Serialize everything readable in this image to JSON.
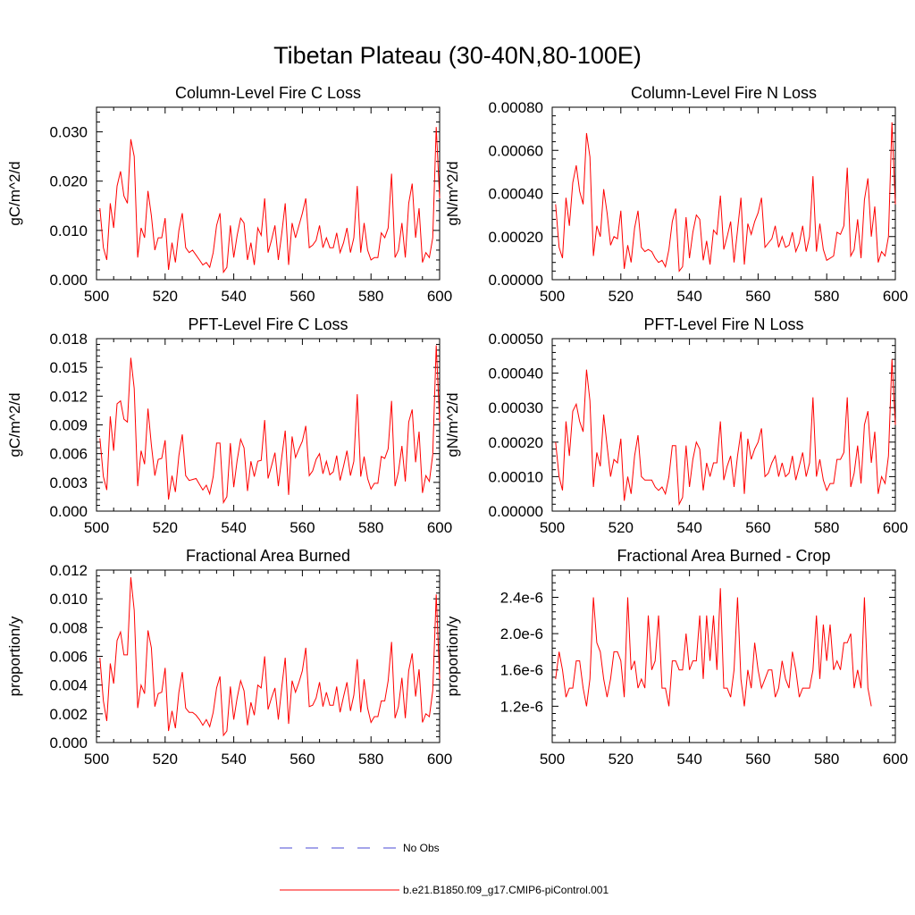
{
  "title": "Tibetan Plateau (30-40N,80-100E)",
  "colors": {
    "model": "#ff0000",
    "obs": "#4a4ad6",
    "axis": "#000000"
  },
  "legend": [
    {
      "label": "No Obs",
      "color": "#4a4ad6",
      "dash": "dashed"
    },
    {
      "label": "b.e21.B1850.f09_g17.CMIP6-piControl.001",
      "color": "#ff0000",
      "dash": "solid"
    }
  ],
  "chart_data": [
    {
      "type": "line",
      "title": "Column-Level Fire C Loss",
      "xlabel": "",
      "ylabel": "gC/m^2/d",
      "xlim": [
        500,
        600
      ],
      "ylim": [
        0,
        0.035
      ],
      "x_ticks": [
        "500",
        "520",
        "540",
        "560",
        "580",
        "600"
      ],
      "y_ticks": [
        "0.000",
        "0.010",
        "0.020",
        "0.030"
      ],
      "y_tick_values": [
        0,
        0.01,
        0.02,
        0.03
      ],
      "series": [
        {
          "name": "b.e21.B1850.f09_g17.CMIP6-piControl.001",
          "x_start": 501,
          "values": [
            0.0145,
            0.0065,
            0.004,
            0.0155,
            0.0105,
            0.019,
            0.022,
            0.017,
            0.0155,
            0.0285,
            0.025,
            0.0045,
            0.0105,
            0.0085,
            0.018,
            0.013,
            0.006,
            0.0085,
            0.0085,
            0.0125,
            0.002,
            0.0075,
            0.0035,
            0.01,
            0.0135,
            0.0065,
            0.0055,
            0.006,
            0.005,
            0.004,
            0.003,
            0.0035,
            0.0025,
            0.0055,
            0.011,
            0.0135,
            0.0015,
            0.0025,
            0.011,
            0.0045,
            0.009,
            0.0125,
            0.0115,
            0.004,
            0.0075,
            0.003,
            0.0105,
            0.009,
            0.0165,
            0.0055,
            0.008,
            0.011,
            0.004,
            0.0095,
            0.0155,
            0.003,
            0.0115,
            0.0085,
            0.011,
            0.0135,
            0.0165,
            0.0065,
            0.007,
            0.008,
            0.011,
            0.0065,
            0.0085,
            0.0065,
            0.0065,
            0.0095,
            0.0055,
            0.0075,
            0.0105,
            0.0055,
            0.0085,
            0.019,
            0.0055,
            0.0115,
            0.006,
            0.004,
            0.0045,
            0.0045,
            0.0095,
            0.0085,
            0.0105,
            0.0215,
            0.0045,
            0.006,
            0.0115,
            0.0045,
            0.0155,
            0.0195,
            0.0085,
            0.0145,
            0.0035,
            0.0055,
            0.0045,
            0.0085,
            0.031,
            0.0165
          ]
        }
      ]
    },
    {
      "type": "line",
      "title": "Column-Level Fire N Loss",
      "xlabel": "",
      "ylabel": "gN/m^2/d",
      "xlim": [
        500,
        600
      ],
      "ylim": [
        0,
        0.0008
      ],
      "x_ticks": [
        "500",
        "520",
        "540",
        "560",
        "580",
        "600"
      ],
      "y_ticks": [
        "0.00000",
        "0.00020",
        "0.00040",
        "0.00060",
        "0.00080"
      ],
      "y_tick_values": [
        0,
        0.0002,
        0.0004,
        0.0006,
        0.0008
      ],
      "series": [
        {
          "name": "b.e21.B1850.f09_g17.CMIP6-piControl.001",
          "x_start": 501,
          "values": [
            0.00035,
            0.00015,
            0.0001,
            0.00038,
            0.00025,
            0.00045,
            0.00053,
            0.00041,
            0.00035,
            0.00068,
            0.00057,
            0.00011,
            0.00025,
            0.0002,
            0.00042,
            0.00031,
            0.00016,
            0.0002,
            0.00019,
            0.00032,
            5e-05,
            0.00016,
            8e-05,
            0.00024,
            0.00032,
            0.00015,
            0.00013,
            0.00014,
            0.00013,
            0.0001,
            8e-05,
            9e-05,
            6e-05,
            0.00014,
            0.00027,
            0.00033,
            4e-05,
            6e-05,
            0.00029,
            0.0001,
            0.00022,
            0.0003,
            0.00028,
            9e-05,
            0.00018,
            7e-05,
            0.00023,
            0.00021,
            0.00039,
            0.00014,
            0.0002,
            0.00027,
            8e-05,
            0.00023,
            0.00038,
            7e-05,
            0.00026,
            0.00021,
            0.00027,
            0.00031,
            0.00038,
            0.00015,
            0.00017,
            0.00019,
            0.00025,
            0.00015,
            0.0002,
            0.00015,
            0.00016,
            0.00022,
            0.00013,
            0.00017,
            0.00025,
            0.00013,
            0.0002,
            0.00048,
            0.00013,
            0.00026,
            0.00014,
            9e-05,
            0.0001,
            0.00011,
            0.00022,
            0.00021,
            0.00025,
            0.00052,
            0.00011,
            0.00014,
            0.00028,
            0.0001,
            0.00037,
            0.00047,
            0.0002,
            0.00034,
            8e-05,
            0.00013,
            0.00011,
            0.0002,
            0.00073,
            0.00035
          ]
        }
      ]
    },
    {
      "type": "line",
      "title": "PFT-Level Fire C Loss",
      "xlabel": "",
      "ylabel": "gC/m^2/d",
      "xlim": [
        500,
        600
      ],
      "ylim": [
        0,
        0.018
      ],
      "x_ticks": [
        "500",
        "520",
        "540",
        "560",
        "580",
        "600"
      ],
      "y_ticks": [
        "0.000",
        "0.003",
        "0.006",
        "0.009",
        "0.012",
        "0.015",
        "0.018"
      ],
      "y_tick_values": [
        0,
        0.003,
        0.006,
        0.009,
        0.012,
        0.015,
        0.018
      ],
      "series": [
        {
          "name": "b.e21.B1850.f09_g17.CMIP6-piControl.001",
          "x_start": 501,
          "values": [
            0.0076,
            0.0036,
            0.0022,
            0.0099,
            0.0063,
            0.0112,
            0.0115,
            0.0096,
            0.0093,
            0.016,
            0.0128,
            0.0026,
            0.0063,
            0.0049,
            0.0107,
            0.0069,
            0.0037,
            0.0054,
            0.0055,
            0.0074,
            0.0012,
            0.0037,
            0.002,
            0.0058,
            0.008,
            0.0037,
            0.0032,
            0.0033,
            0.0034,
            0.0028,
            0.0022,
            0.0027,
            0.0018,
            0.0036,
            0.0071,
            0.0071,
            0.0009,
            0.0015,
            0.0071,
            0.0025,
            0.0053,
            0.0075,
            0.0066,
            0.0021,
            0.0052,
            0.0036,
            0.0052,
            0.0053,
            0.0095,
            0.0034,
            0.0047,
            0.0061,
            0.0026,
            0.0057,
            0.0084,
            0.0017,
            0.0078,
            0.0056,
            0.0065,
            0.0073,
            0.0089,
            0.0037,
            0.0042,
            0.0054,
            0.006,
            0.0039,
            0.0052,
            0.0038,
            0.0041,
            0.0058,
            0.0032,
            0.0047,
            0.0063,
            0.0037,
            0.0052,
            0.0122,
            0.0036,
            0.0057,
            0.0034,
            0.0023,
            0.0029,
            0.0029,
            0.0057,
            0.0055,
            0.0065,
            0.0115,
            0.0026,
            0.0041,
            0.0068,
            0.0031,
            0.0093,
            0.0106,
            0.0051,
            0.0083,
            0.0019,
            0.0037,
            0.0031,
            0.0059,
            0.0173,
            0.0093
          ]
        }
      ]
    },
    {
      "type": "line",
      "title": "PFT-Level Fire N Loss",
      "xlabel": "",
      "ylabel": "gN/m^2/d",
      "xlim": [
        500,
        600
      ],
      "ylim": [
        0,
        0.0005
      ],
      "x_ticks": [
        "500",
        "520",
        "540",
        "560",
        "580",
        "600"
      ],
      "y_ticks": [
        "0.00000",
        "0.00010",
        "0.00020",
        "0.00030",
        "0.00040",
        "0.00050"
      ],
      "y_tick_values": [
        0,
        0.0001,
        0.0002,
        0.0003,
        0.0004,
        0.0005
      ],
      "series": [
        {
          "name": "b.e21.B1850.f09_g17.CMIP6-piControl.001",
          "x_start": 501,
          "values": [
            0.0002,
            0.0001,
            6e-05,
            0.00026,
            0.00016,
            0.00029,
            0.00031,
            0.00026,
            0.00023,
            0.00041,
            0.00032,
            7e-05,
            0.00017,
            0.00013,
            0.00028,
            0.00019,
            0.0001,
            0.00015,
            0.00014,
            0.00021,
            3e-05,
            0.0001,
            5e-05,
            0.00016,
            0.00022,
            0.0001,
            9e-05,
            9e-05,
            9e-05,
            7e-05,
            6e-05,
            7e-05,
            5e-05,
            0.0001,
            0.00019,
            0.00019,
            2e-05,
            4e-05,
            0.00019,
            7e-05,
            0.00015,
            0.0002,
            0.00018,
            6e-05,
            0.00014,
            0.0001,
            0.00014,
            0.00014,
            0.00026,
            9e-05,
            0.00013,
            0.00016,
            7e-05,
            0.00016,
            0.00023,
            5e-05,
            0.00021,
            0.00015,
            0.00018,
            0.0002,
            0.00024,
            0.0001,
            0.00011,
            0.00014,
            0.00016,
            0.0001,
            0.00014,
            0.0001,
            0.00011,
            0.00016,
            9e-05,
            0.00013,
            0.00017,
            0.0001,
            0.00014,
            0.00033,
            0.0001,
            0.00015,
            9e-05,
            6e-05,
            8e-05,
            8e-05,
            0.00015,
            0.00015,
            0.00017,
            0.00033,
            7e-05,
            0.00011,
            0.00019,
            8e-05,
            0.00025,
            0.00029,
            0.00014,
            0.00023,
            5e-05,
            0.0001,
            8e-05,
            0.00016,
            0.00044,
            0.00025
          ]
        }
      ]
    },
    {
      "type": "line",
      "title": "Fractional Area Burned",
      "xlabel": "",
      "ylabel": "proportion/y",
      "xlim": [
        500,
        600
      ],
      "ylim": [
        0,
        0.012
      ],
      "x_ticks": [
        "500",
        "520",
        "540",
        "560",
        "580",
        "600"
      ],
      "y_ticks": [
        "0.000",
        "0.002",
        "0.004",
        "0.006",
        "0.008",
        "0.010",
        "0.012"
      ],
      "y_tick_values": [
        0,
        0.002,
        0.004,
        0.006,
        0.008,
        0.01,
        0.012
      ],
      "series": [
        {
          "name": "b.e21.B1850.f09_g17.CMIP6-piControl.001",
          "x_start": 501,
          "values": [
            0.0059,
            0.0029,
            0.0015,
            0.0055,
            0.0041,
            0.0071,
            0.0077,
            0.0061,
            0.0061,
            0.0115,
            0.0092,
            0.0024,
            0.004,
            0.0034,
            0.0078,
            0.0066,
            0.0025,
            0.0034,
            0.0035,
            0.0052,
            0.0008,
            0.0022,
            0.001,
            0.0035,
            0.0049,
            0.0024,
            0.0021,
            0.0021,
            0.0019,
            0.0016,
            0.0012,
            0.0016,
            0.0011,
            0.0021,
            0.0038,
            0.0046,
            0.0005,
            0.0008,
            0.0039,
            0.0016,
            0.0031,
            0.0043,
            0.0036,
            0.0012,
            0.0028,
            0.0019,
            0.004,
            0.0038,
            0.006,
            0.0023,
            0.0031,
            0.0038,
            0.0016,
            0.0039,
            0.0059,
            0.0013,
            0.0043,
            0.0035,
            0.0042,
            0.005,
            0.0066,
            0.0025,
            0.0026,
            0.0031,
            0.0042,
            0.0025,
            0.0035,
            0.0026,
            0.0026,
            0.0039,
            0.0021,
            0.0032,
            0.0042,
            0.0022,
            0.0033,
            0.0058,
            0.0021,
            0.0044,
            0.0024,
            0.0014,
            0.0018,
            0.0018,
            0.0029,
            0.0029,
            0.0043,
            0.007,
            0.0017,
            0.0025,
            0.0045,
            0.0017,
            0.005,
            0.0062,
            0.0032,
            0.0051,
            0.0014,
            0.002,
            0.0018,
            0.0036,
            0.0103,
            0.0044
          ]
        }
      ]
    },
    {
      "type": "line",
      "title": "Fractional Area Burned - Crop",
      "xlabel": "",
      "ylabel": "proportion/y",
      "xlim": [
        500,
        600
      ],
      "ylim": [
        8e-07,
        2.7e-06
      ],
      "x_ticks": [
        "500",
        "520",
        "540",
        "560",
        "580",
        "600"
      ],
      "y_ticks": [
        "1.2e-6",
        "1.6e-6",
        "2.0e-6",
        "2.4e-6"
      ],
      "y_tick_values": [
        1.2e-06,
        1.6e-06,
        2e-06,
        2.4e-06
      ],
      "series": [
        {
          "name": "b.e21.B1850.f09_g17.CMIP6-piControl.001",
          "x_start": 501,
          "values": [
            1.5e-06,
            1.8e-06,
            1.6e-06,
            1.3e-06,
            1.4e-06,
            1.4e-06,
            1.7e-06,
            1.7e-06,
            1.4e-06,
            1.2e-06,
            1.5e-06,
            2.4e-06,
            1.9e-06,
            1.8e-06,
            1.5e-06,
            1.3e-06,
            1.5e-06,
            1.8e-06,
            1.8e-06,
            1.7e-06,
            1.3e-06,
            2.4e-06,
            1.6e-06,
            1.7e-06,
            1.4e-06,
            1.5e-06,
            1.4e-06,
            2.2e-06,
            1.6e-06,
            1.7e-06,
            2.2e-06,
            1.4e-06,
            1.4e-06,
            1.2e-06,
            1.7e-06,
            1.7e-06,
            1.6e-06,
            1.6e-06,
            2e-06,
            1.6e-06,
            1.7e-06,
            1.7e-06,
            2.2e-06,
            1.5e-06,
            2.2e-06,
            1.7e-06,
            2.2e-06,
            1.6e-06,
            2.5e-06,
            1.4e-06,
            1.4e-06,
            1.3e-06,
            1.6e-06,
            2.4e-06,
            1.5e-06,
            1.2e-06,
            1.6e-06,
            1.4e-06,
            1.9e-06,
            1.6e-06,
            1.4e-06,
            1.5e-06,
            1.6e-06,
            1.6e-06,
            1.3e-06,
            1.4e-06,
            1.7e-06,
            1.5e-06,
            1.4e-06,
            1.8e-06,
            1.6e-06,
            1.3e-06,
            1.4e-06,
            1.4e-06,
            1.4e-06,
            1.6e-06,
            2.2e-06,
            1.5e-06,
            2.1e-06,
            1.7e-06,
            2.1e-06,
            1.6e-06,
            1.7e-06,
            1.6e-06,
            1.9e-06,
            1.9e-06,
            2e-06,
            1.4e-06,
            1.6e-06,
            1.4e-06,
            2.4e-06,
            1.4e-06,
            1.2e-06
          ]
        }
      ]
    }
  ]
}
